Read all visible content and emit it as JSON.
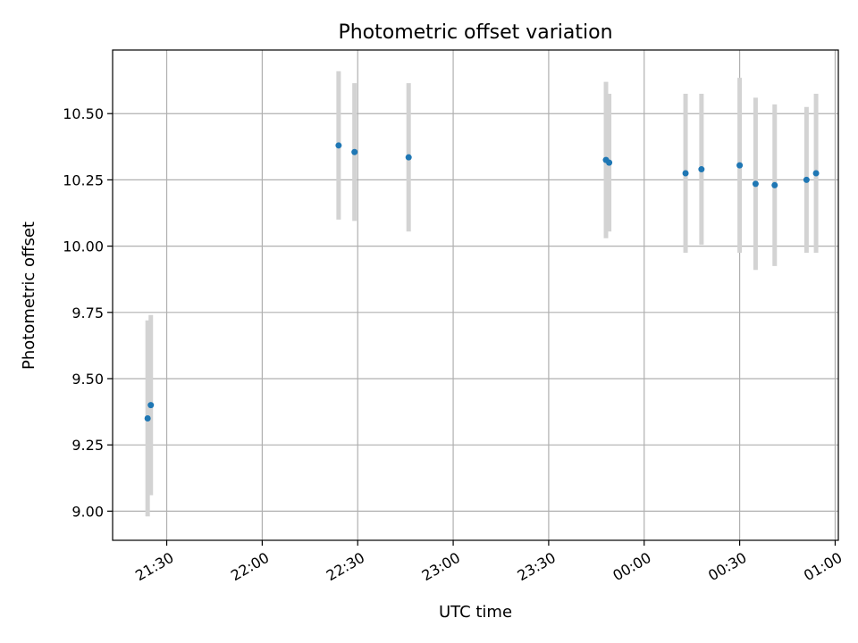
{
  "chart_data": {
    "type": "scatter",
    "title": "Photometric offset variation",
    "xlabel": "UTC time",
    "ylabel": "Photometric offset",
    "x_axis_type": "time",
    "xlim": [
      "21:13",
      "01:01"
    ],
    "ylim": [
      8.89,
      10.74
    ],
    "grid": true,
    "marker_color": "#1f77b4",
    "errorbar_color": "#d3d3d3",
    "x_ticks": [
      "21:30",
      "22:00",
      "22:30",
      "23:00",
      "23:30",
      "00:00",
      "00:30",
      "01:00"
    ],
    "y_ticks": [
      "9.00",
      "9.25",
      "9.50",
      "9.75",
      "10.00",
      "10.25",
      "10.50"
    ],
    "points": [
      {
        "x": "21:24",
        "y": 9.35,
        "err": 0.37
      },
      {
        "x": "21:25",
        "y": 9.4,
        "err": 0.34
      },
      {
        "x": "22:24",
        "y": 10.38,
        "err": 0.28
      },
      {
        "x": "22:29",
        "y": 10.355,
        "err": 0.26
      },
      {
        "x": "22:46",
        "y": 10.335,
        "err": 0.28
      },
      {
        "x": "23:48",
        "y": 10.325,
        "err": 0.295
      },
      {
        "x": "23:49",
        "y": 10.315,
        "err": 0.26
      },
      {
        "x": "00:13",
        "y": 10.275,
        "err": 0.3
      },
      {
        "x": "00:18",
        "y": 10.29,
        "err": 0.285
      },
      {
        "x": "00:30",
        "y": 10.305,
        "err": 0.33
      },
      {
        "x": "00:35",
        "y": 10.235,
        "err": 0.325
      },
      {
        "x": "00:41",
        "y": 10.23,
        "err": 0.305
      },
      {
        "x": "00:51",
        "y": 10.25,
        "err": 0.275
      },
      {
        "x": "00:54",
        "y": 10.275,
        "err": 0.3
      }
    ]
  }
}
